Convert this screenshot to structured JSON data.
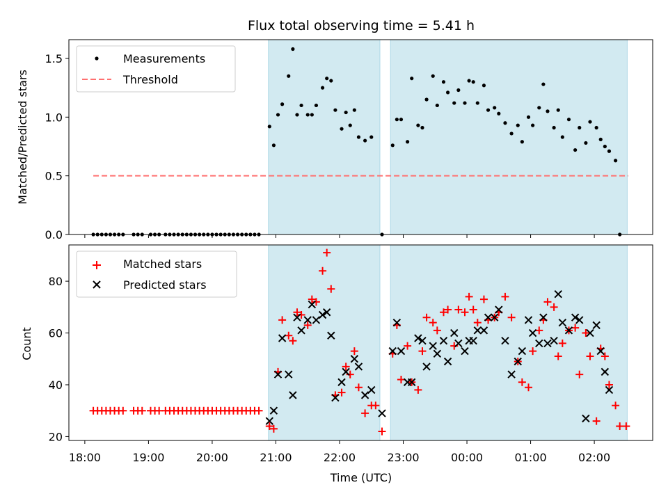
{
  "chart_data": {
    "title": "Flux total observing time = 5.41 h",
    "type": "scatter",
    "x_ticks": [
      "18:00",
      "19:00",
      "20:00",
      "21:00",
      "22:00",
      "23:00",
      "00:00",
      "01:00",
      "02:00"
    ],
    "xlim": [
      "17:45",
      "02:55"
    ],
    "xlabel": "Time (UTC)",
    "shaded_spans": [
      [
        "20:53",
        "22:38"
      ],
      [
        "22:48",
        "02:31"
      ]
    ],
    "colors": {
      "shade": "#add8e6",
      "matched": "#ff0000",
      "predicted": "#000000",
      "threshold": "#ff7070",
      "measurements": "#000000"
    },
    "top": {
      "ylabel": "Matched/Predicted stars",
      "ylim": [
        0,
        1.66
      ],
      "y_ticks": [
        0.0,
        0.5,
        1.0,
        1.5
      ],
      "y_tick_labels": [
        "0.0",
        "0.5",
        "1.0",
        "1.5"
      ],
      "legend": {
        "placement": "upper left",
        "measurements": "Measurements",
        "threshold": "Threshold"
      },
      "threshold": {
        "y": 0.5,
        "x": [
          "18:08",
          "02:32"
        ]
      },
      "measurements": [
        [
          "18:08",
          0
        ],
        [
          "18:12",
          0
        ],
        [
          "18:16",
          0
        ],
        [
          "18:20",
          0
        ],
        [
          "18:24",
          0
        ],
        [
          "18:28",
          0
        ],
        [
          "18:32",
          0
        ],
        [
          "18:36",
          0
        ],
        [
          "18:46",
          0
        ],
        [
          "18:50",
          0
        ],
        [
          "18:54",
          0
        ],
        [
          "19:02",
          0
        ],
        [
          "19:06",
          0
        ],
        [
          "19:10",
          0
        ],
        [
          "19:16",
          0
        ],
        [
          "19:20",
          0
        ],
        [
          "19:24",
          0
        ],
        [
          "19:28",
          0
        ],
        [
          "19:32",
          0
        ],
        [
          "19:36",
          0
        ],
        [
          "19:40",
          0
        ],
        [
          "19:44",
          0
        ],
        [
          "19:48",
          0
        ],
        [
          "19:52",
          0
        ],
        [
          "19:56",
          0
        ],
        [
          "20:00",
          0
        ],
        [
          "20:04",
          0
        ],
        [
          "20:08",
          0
        ],
        [
          "20:12",
          0
        ],
        [
          "20:16",
          0
        ],
        [
          "20:20",
          0
        ],
        [
          "20:24",
          0
        ],
        [
          "20:28",
          0
        ],
        [
          "20:32",
          0
        ],
        [
          "20:36",
          0
        ],
        [
          "20:40",
          0
        ],
        [
          "20:44",
          0
        ],
        [
          "20:54",
          0.92
        ],
        [
          "20:58",
          0.76
        ],
        [
          "21:02",
          1.02
        ],
        [
          "21:06",
          1.11
        ],
        [
          "21:12",
          1.35
        ],
        [
          "21:16",
          1.58
        ],
        [
          "21:20",
          1.02
        ],
        [
          "21:24",
          1.1
        ],
        [
          "21:30",
          1.02
        ],
        [
          "21:34",
          1.02
        ],
        [
          "21:38",
          1.1
        ],
        [
          "21:44",
          1.25
        ],
        [
          "21:48",
          1.33
        ],
        [
          "21:52",
          1.31
        ],
        [
          "21:56",
          1.06
        ],
        [
          "22:02",
          0.9
        ],
        [
          "22:06",
          1.04
        ],
        [
          "22:10",
          0.93
        ],
        [
          "22:14",
          1.06
        ],
        [
          "22:18",
          0.83
        ],
        [
          "22:24",
          0.8
        ],
        [
          "22:30",
          0.83
        ],
        [
          "22:40",
          0
        ],
        [
          "22:50",
          0.76
        ],
        [
          "22:54",
          0.98
        ],
        [
          "22:58",
          0.98
        ],
        [
          "23:04",
          0.79
        ],
        [
          "23:08",
          1.33
        ],
        [
          "23:14",
          0.93
        ],
        [
          "23:18",
          0.91
        ],
        [
          "23:22",
          1.15
        ],
        [
          "23:28",
          1.35
        ],
        [
          "23:32",
          1.1
        ],
        [
          "23:38",
          1.3
        ],
        [
          "23:42",
          1.21
        ],
        [
          "23:48",
          1.12
        ],
        [
          "23:52",
          1.23
        ],
        [
          "23:58",
          1.12
        ],
        [
          "00:02",
          1.31
        ],
        [
          "00:06",
          1.3
        ],
        [
          "00:10",
          1.12
        ],
        [
          "00:16",
          1.27
        ],
        [
          "00:20",
          1.06
        ],
        [
          "00:26",
          1.08
        ],
        [
          "00:30",
          1.03
        ],
        [
          "00:36",
          0.95
        ],
        [
          "00:42",
          0.86
        ],
        [
          "00:48",
          0.93
        ],
        [
          "00:52",
          0.79
        ],
        [
          "00:58",
          1.0
        ],
        [
          "01:02",
          0.93
        ],
        [
          "01:08",
          1.08
        ],
        [
          "01:12",
          1.28
        ],
        [
          "01:16",
          1.05
        ],
        [
          "01:22",
          0.91
        ],
        [
          "01:26",
          1.06
        ],
        [
          "01:30",
          0.83
        ],
        [
          "01:36",
          0.98
        ],
        [
          "01:42",
          0.72
        ],
        [
          "01:46",
          0.91
        ],
        [
          "01:52",
          0.78
        ],
        [
          "01:56",
          0.96
        ],
        [
          "02:02",
          0.91
        ],
        [
          "02:06",
          0.81
        ],
        [
          "02:10",
          0.75
        ],
        [
          "02:14",
          0.71
        ],
        [
          "02:20",
          0.63
        ],
        [
          "02:24",
          0
        ]
      ]
    },
    "bottom": {
      "ylabel": "Count",
      "ylim": [
        18.5,
        94
      ],
      "y_ticks": [
        20,
        40,
        60,
        80
      ],
      "y_tick_labels": [
        "20",
        "40",
        "60",
        "80"
      ],
      "legend": {
        "placement": "upper left",
        "matched": "Matched stars",
        "predicted": "Predicted stars"
      },
      "matched": [
        [
          "18:08",
          30
        ],
        [
          "18:12",
          30
        ],
        [
          "18:16",
          30
        ],
        [
          "18:20",
          30
        ],
        [
          "18:24",
          30
        ],
        [
          "18:28",
          30
        ],
        [
          "18:32",
          30
        ],
        [
          "18:36",
          30
        ],
        [
          "18:46",
          30
        ],
        [
          "18:50",
          30
        ],
        [
          "18:54",
          30
        ],
        [
          "19:02",
          30
        ],
        [
          "19:06",
          30
        ],
        [
          "19:10",
          30
        ],
        [
          "19:16",
          30
        ],
        [
          "19:20",
          30
        ],
        [
          "19:24",
          30
        ],
        [
          "19:28",
          30
        ],
        [
          "19:32",
          30
        ],
        [
          "19:36",
          30
        ],
        [
          "19:40",
          30
        ],
        [
          "19:44",
          30
        ],
        [
          "19:48",
          30
        ],
        [
          "19:52",
          30
        ],
        [
          "19:56",
          30
        ],
        [
          "20:00",
          30
        ],
        [
          "20:04",
          30
        ],
        [
          "20:08",
          30
        ],
        [
          "20:12",
          30
        ],
        [
          "20:16",
          30
        ],
        [
          "20:20",
          30
        ],
        [
          "20:24",
          30
        ],
        [
          "20:28",
          30
        ],
        [
          "20:32",
          30
        ],
        [
          "20:36",
          30
        ],
        [
          "20:40",
          30
        ],
        [
          "20:44",
          30
        ],
        [
          "20:54",
          24
        ],
        [
          "20:58",
          23
        ],
        [
          "21:02",
          45
        ],
        [
          "21:06",
          65
        ],
        [
          "21:12",
          59
        ],
        [
          "21:16",
          57
        ],
        [
          "21:20",
          68
        ],
        [
          "21:24",
          67
        ],
        [
          "21:30",
          63
        ],
        [
          "21:34",
          73
        ],
        [
          "21:38",
          72
        ],
        [
          "21:44",
          84
        ],
        [
          "21:48",
          91
        ],
        [
          "21:52",
          77
        ],
        [
          "21:56",
          36
        ],
        [
          "22:02",
          37
        ],
        [
          "22:06",
          47
        ],
        [
          "22:10",
          44
        ],
        [
          "22:14",
          53
        ],
        [
          "22:18",
          39
        ],
        [
          "22:24",
          29
        ],
        [
          "22:30",
          32
        ],
        [
          "22:34",
          32
        ],
        [
          "22:40",
          22
        ],
        [
          "22:50",
          52
        ],
        [
          "22:54",
          63
        ],
        [
          "22:58",
          42
        ],
        [
          "23:04",
          55
        ],
        [
          "23:08",
          41
        ],
        [
          "23:14",
          38
        ],
        [
          "23:18",
          53
        ],
        [
          "23:22",
          66
        ],
        [
          "23:28",
          64
        ],
        [
          "23:32",
          61
        ],
        [
          "23:38",
          68
        ],
        [
          "23:42",
          69
        ],
        [
          "23:48",
          55
        ],
        [
          "23:52",
          69
        ],
        [
          "23:58",
          68
        ],
        [
          "00:02",
          74
        ],
        [
          "00:06",
          69
        ],
        [
          "00:10",
          64
        ],
        [
          "00:16",
          73
        ],
        [
          "00:20",
          65
        ],
        [
          "00:26",
          66
        ],
        [
          "00:30",
          68
        ],
        [
          "00:36",
          74
        ],
        [
          "00:42",
          66
        ],
        [
          "00:48",
          49
        ],
        [
          "00:52",
          41
        ],
        [
          "00:58",
          39
        ],
        [
          "01:02",
          53
        ],
        [
          "01:08",
          61
        ],
        [
          "01:12",
          65
        ],
        [
          "01:16",
          72
        ],
        [
          "01:22",
          70
        ],
        [
          "01:26",
          51
        ],
        [
          "01:30",
          56
        ],
        [
          "01:36",
          61
        ],
        [
          "01:42",
          62
        ],
        [
          "01:46",
          44
        ],
        [
          "01:52",
          60
        ],
        [
          "01:56",
          51
        ],
        [
          "02:02",
          26
        ],
        [
          "02:06",
          54
        ],
        [
          "02:10",
          51
        ],
        [
          "02:14",
          40
        ],
        [
          "02:20",
          32
        ],
        [
          "02:24",
          24
        ],
        [
          "02:30",
          24
        ]
      ],
      "predicted": [
        [
          "20:54",
          26
        ],
        [
          "20:58",
          30
        ],
        [
          "21:02",
          44
        ],
        [
          "21:06",
          58
        ],
        [
          "21:12",
          44
        ],
        [
          "21:16",
          36
        ],
        [
          "21:20",
          66
        ],
        [
          "21:24",
          61
        ],
        [
          "21:30",
          65
        ],
        [
          "21:34",
          71
        ],
        [
          "21:38",
          65
        ],
        [
          "21:44",
          67
        ],
        [
          "21:48",
          68
        ],
        [
          "21:52",
          59
        ],
        [
          "21:56",
          35
        ],
        [
          "22:02",
          41
        ],
        [
          "22:06",
          45
        ],
        [
          "22:14",
          50
        ],
        [
          "22:18",
          47
        ],
        [
          "22:24",
          36
        ],
        [
          "22:30",
          38
        ],
        [
          "22:40",
          29
        ],
        [
          "22:50",
          53
        ],
        [
          "22:54",
          64
        ],
        [
          "22:58",
          53
        ],
        [
          "23:04",
          41
        ],
        [
          "23:08",
          41
        ],
        [
          "23:14",
          58
        ],
        [
          "23:18",
          57
        ],
        [
          "23:22",
          47
        ],
        [
          "23:28",
          55
        ],
        [
          "23:32",
          52
        ],
        [
          "23:38",
          57
        ],
        [
          "23:42",
          49
        ],
        [
          "23:48",
          60
        ],
        [
          "23:52",
          56
        ],
        [
          "23:58",
          53
        ],
        [
          "00:02",
          57
        ],
        [
          "00:06",
          57
        ],
        [
          "00:10",
          61
        ],
        [
          "00:16",
          61
        ],
        [
          "00:20",
          66
        ],
        [
          "00:26",
          66
        ],
        [
          "00:30",
          69
        ],
        [
          "00:36",
          57
        ],
        [
          "00:42",
          44
        ],
        [
          "00:48",
          49
        ],
        [
          "00:52",
          53
        ],
        [
          "00:58",
          65
        ],
        [
          "01:02",
          60
        ],
        [
          "01:08",
          56
        ],
        [
          "01:12",
          66
        ],
        [
          "01:16",
          56
        ],
        [
          "01:22",
          57
        ],
        [
          "01:26",
          75
        ],
        [
          "01:30",
          64
        ],
        [
          "01:36",
          61
        ],
        [
          "01:42",
          66
        ],
        [
          "01:46",
          65
        ],
        [
          "01:52",
          27
        ],
        [
          "01:56",
          60
        ],
        [
          "02:02",
          63
        ],
        [
          "02:06",
          53
        ],
        [
          "02:10",
          45
        ],
        [
          "02:14",
          38
        ]
      ]
    }
  }
}
